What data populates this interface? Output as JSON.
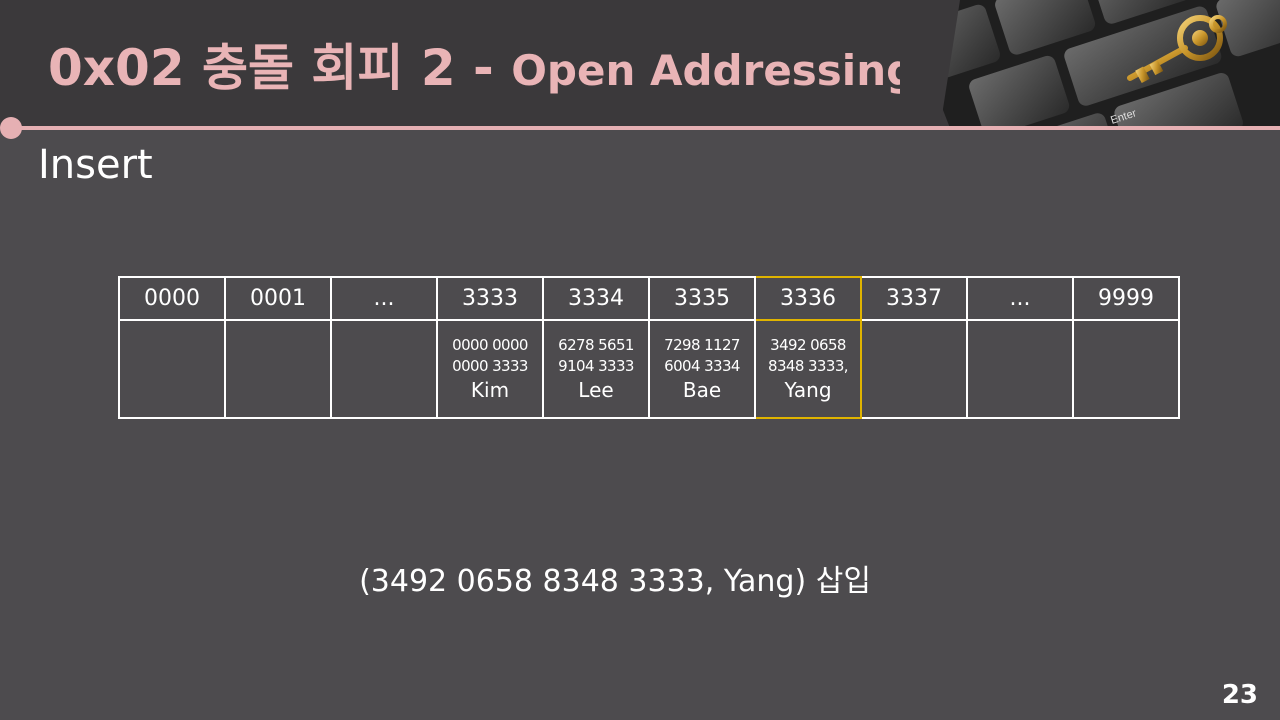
{
  "slide": {
    "title_main": "0x02  충돌 회피 2 - ",
    "title_sub": "Open Addressing",
    "section": "Insert",
    "page_number": "23",
    "caption": "(3492 0658 8348 3333, Yang) 삽입",
    "accent_color": "#e6b0b3",
    "highlight_color": "#e0b400"
  },
  "table": {
    "headers": [
      "0000",
      "0001",
      "...",
      "3333",
      "3334",
      "3335",
      "3336",
      "3337",
      "...",
      "9999"
    ],
    "cells": [
      {
        "line1": "",
        "line2": "",
        "name": ""
      },
      {
        "line1": "",
        "line2": "",
        "name": ""
      },
      {
        "line1": "",
        "line2": "",
        "name": ""
      },
      {
        "line1": "0000 0000",
        "line2": "0000 3333",
        "name": "Kim"
      },
      {
        "line1": "6278 5651",
        "line2": "9104 3333",
        "name": "Lee"
      },
      {
        "line1": "7298 1127",
        "line2": "6004 3334",
        "name": "Bae"
      },
      {
        "line1": "3492 0658",
        "line2": "8348 3333,",
        "name": "Yang"
      },
      {
        "line1": "",
        "line2": "",
        "name": ""
      },
      {
        "line1": "",
        "line2": "",
        "name": ""
      },
      {
        "line1": "",
        "line2": "",
        "name": ""
      }
    ],
    "highlighted_index": 6
  },
  "decor": {
    "key_image_icon": "keyboard-key-icon",
    "keycap_label": "Enter"
  }
}
